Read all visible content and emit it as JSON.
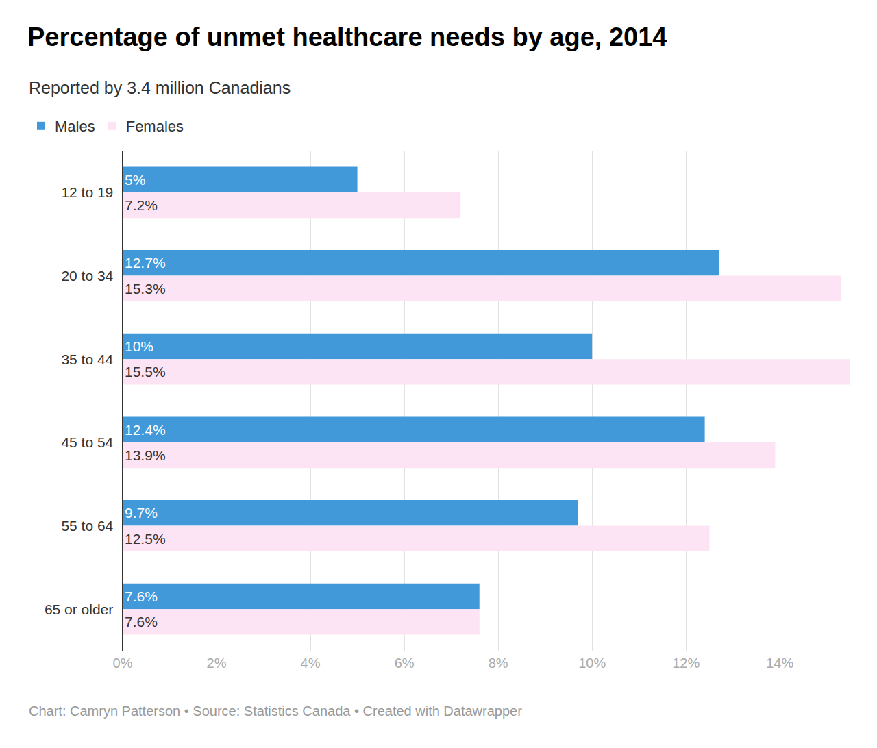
{
  "chart_data": {
    "type": "bar",
    "orientation": "horizontal",
    "title": "Percentage of unmet healthcare needs by age, 2014",
    "subtitle": "Reported by 3.4 million Canadians",
    "annotations": [
      "Chart: Camryn Patterson • Source: Statistics Canada • Created with Datawrapper"
    ],
    "categories": [
      "12 to 19",
      "20 to 34",
      "35 to 44",
      "45 to 54",
      "55 to 64",
      "65 or older"
    ],
    "series": [
      {
        "name": "Males",
        "color": "#4299da",
        "values": [
          5,
          12.7,
          10,
          12.4,
          9.7,
          7.6
        ],
        "value_labels": [
          "5%",
          "12.7%",
          "10%",
          "12.4%",
          "9.7%",
          "7.6%"
        ]
      },
      {
        "name": "Females",
        "color": "#fde4f4",
        "values": [
          7.2,
          15.3,
          15.5,
          13.9,
          12.5,
          7.6
        ],
        "value_labels": [
          "7.2%",
          "15.3%",
          "15.5%",
          "13.9%",
          "12.5%",
          "7.6%"
        ]
      }
    ],
    "xlim": [
      0,
      15.5
    ],
    "xticks": [
      {
        "value": 0,
        "label": "0%"
      },
      {
        "value": 2,
        "label": "2%"
      },
      {
        "value": 4,
        "label": "4%"
      },
      {
        "value": 6,
        "label": "6%"
      },
      {
        "value": 8,
        "label": "8%"
      },
      {
        "value": 10,
        "label": "10%"
      },
      {
        "value": 12,
        "label": "12%"
      },
      {
        "value": 14,
        "label": "14%"
      }
    ],
    "grid": true,
    "legend": "top-left",
    "data_labels": true
  }
}
